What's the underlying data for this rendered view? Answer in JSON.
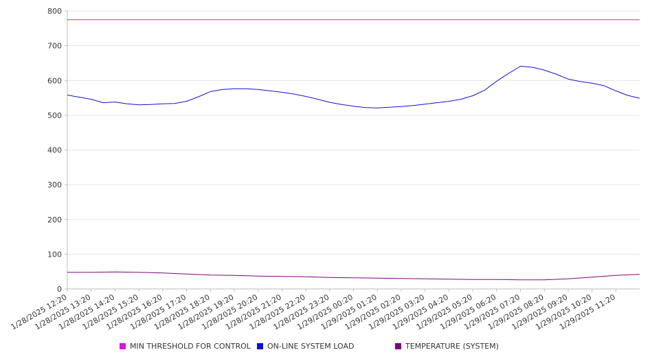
{
  "chart_data": {
    "type": "line",
    "ylim": [
      0,
      800
    ],
    "y_ticks": [
      0,
      100,
      200,
      300,
      400,
      500,
      600,
      700,
      800
    ],
    "x_tick_labels": [
      "1/28/2025 12:20",
      "1/28/2025 13:20",
      "1/28/2025 14:20",
      "1/28/2025 15:20",
      "1/28/2025 16:20",
      "1/28/2025 17:20",
      "1/28/2025 18:20",
      "1/28/2025 19:20",
      "1/28/2025 20:20",
      "1/28/2025 21:20",
      "1/28/2025 22:20",
      "1/28/2025 23:20",
      "1/29/2025 00:20",
      "1/29/2025 01:20",
      "1/29/2025 02:20",
      "1/29/2025 03:20",
      "1/29/2025 04:20",
      "1/29/2025 05:20",
      "1/29/2025 06:20",
      "1/29/2025 07:20",
      "1/29/2025 08:20",
      "1/29/2025 09:20",
      "1/29/2025 10:20",
      "1/29/2025 11:20"
    ],
    "grid": "horizontal",
    "legend_position": "bottom",
    "series": [
      {
        "name": "MIN THRESHOLD FOR CONTROL",
        "color": "#e010e0",
        "points": [
          [
            "1/28/2025 12:20",
            775
          ],
          [
            "1/29/2025 12:20",
            775
          ]
        ]
      },
      {
        "name": "ON-LINE SYSTEM LOAD",
        "color": "#1010d0",
        "points": [
          [
            "1/28/2025 12:20",
            558
          ],
          [
            "1/28/2025 12:50",
            552
          ],
          [
            "1/28/2025 13:20",
            546
          ],
          [
            "1/28/2025 13:50",
            536
          ],
          [
            "1/28/2025 14:20",
            538
          ],
          [
            "1/28/2025 14:50",
            533
          ],
          [
            "1/28/2025 15:20",
            530
          ],
          [
            "1/28/2025 15:50",
            531
          ],
          [
            "1/28/2025 16:20",
            533
          ],
          [
            "1/28/2025 16:50",
            534
          ],
          [
            "1/28/2025 17:20",
            540
          ],
          [
            "1/28/2025 17:50",
            553
          ],
          [
            "1/28/2025 18:20",
            568
          ],
          [
            "1/28/2025 18:50",
            574
          ],
          [
            "1/28/2025 19:20",
            576
          ],
          [
            "1/28/2025 19:50",
            576
          ],
          [
            "1/28/2025 20:20",
            574
          ],
          [
            "1/28/2025 20:50",
            570
          ],
          [
            "1/28/2025 21:20",
            566
          ],
          [
            "1/28/2025 21:50",
            561
          ],
          [
            "1/28/2025 22:20",
            554
          ],
          [
            "1/28/2025 22:50",
            546
          ],
          [
            "1/28/2025 23:20",
            537
          ],
          [
            "1/28/2025 23:50",
            531
          ],
          [
            "1/29/2025 00:20",
            526
          ],
          [
            "1/29/2025 00:50",
            522
          ],
          [
            "1/29/2025 01:20",
            521
          ],
          [
            "1/29/2025 01:50",
            523
          ],
          [
            "1/29/2025 02:20",
            525
          ],
          [
            "1/29/2025 02:50",
            528
          ],
          [
            "1/29/2025 03:20",
            532
          ],
          [
            "1/29/2025 03:50",
            536
          ],
          [
            "1/29/2025 04:20",
            540
          ],
          [
            "1/29/2025 04:50",
            546
          ],
          [
            "1/29/2025 05:20",
            556
          ],
          [
            "1/29/2025 05:50",
            572
          ],
          [
            "1/29/2025 06:20",
            598
          ],
          [
            "1/29/2025 06:50",
            620
          ],
          [
            "1/29/2025 07:20",
            641
          ],
          [
            "1/29/2025 07:50",
            638
          ],
          [
            "1/29/2025 08:20",
            630
          ],
          [
            "1/29/2025 08:50",
            618
          ],
          [
            "1/29/2025 09:20",
            604
          ],
          [
            "1/29/2025 09:50",
            597
          ],
          [
            "1/29/2025 10:20",
            592
          ],
          [
            "1/29/2025 10:50",
            585
          ],
          [
            "1/29/2025 11:20",
            570
          ],
          [
            "1/29/2025 11:50",
            557
          ],
          [
            "1/29/2025 12:20",
            549
          ]
        ]
      },
      {
        "name": "TEMPERATURE (SYSTEM)",
        "color": "#800080",
        "points": [
          [
            "1/28/2025 12:20",
            48
          ],
          [
            "1/28/2025 13:20",
            48
          ],
          [
            "1/28/2025 14:20",
            49
          ],
          [
            "1/28/2025 15:20",
            48
          ],
          [
            "1/28/2025 16:20",
            46
          ],
          [
            "1/28/2025 17:20",
            43
          ],
          [
            "1/28/2025 18:20",
            40
          ],
          [
            "1/28/2025 19:20",
            39
          ],
          [
            "1/28/2025 20:20",
            37
          ],
          [
            "1/28/2025 21:20",
            36
          ],
          [
            "1/28/2025 22:20",
            35
          ],
          [
            "1/28/2025 23:20",
            33
          ],
          [
            "1/29/2025 00:20",
            32
          ],
          [
            "1/29/2025 01:20",
            31
          ],
          [
            "1/29/2025 02:20",
            30
          ],
          [
            "1/29/2025 03:20",
            29
          ],
          [
            "1/29/2025 04:20",
            28
          ],
          [
            "1/29/2025 05:20",
            27
          ],
          [
            "1/29/2025 06:20",
            27
          ],
          [
            "1/29/2025 07:20",
            26
          ],
          [
            "1/29/2025 08:20",
            26
          ],
          [
            "1/29/2025 09:20",
            29
          ],
          [
            "1/29/2025 10:20",
            34
          ],
          [
            "1/29/2025 11:20",
            39
          ],
          [
            "1/29/2025 12:20",
            42
          ]
        ]
      }
    ]
  }
}
